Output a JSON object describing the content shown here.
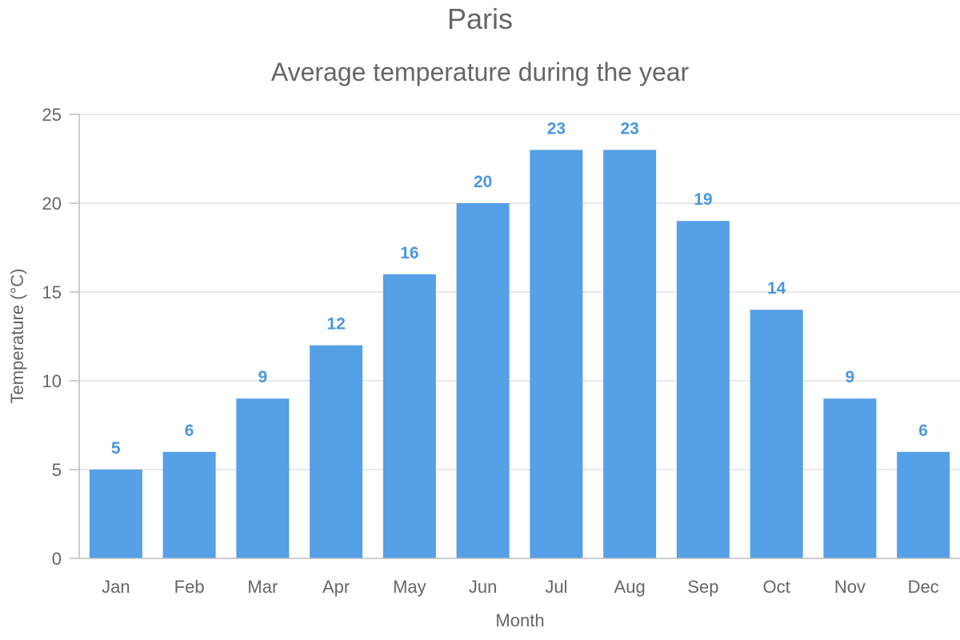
{
  "chart_data": {
    "type": "bar",
    "title": "Paris",
    "subtitle": "Average temperature during the year",
    "xlabel": "Month",
    "ylabel": "Temperature (°C)",
    "categories": [
      "Jan",
      "Feb",
      "Mar",
      "Apr",
      "May",
      "Jun",
      "Jul",
      "Aug",
      "Sep",
      "Oct",
      "Nov",
      "Dec"
    ],
    "values": [
      5,
      6,
      9,
      12,
      16,
      20,
      23,
      23,
      19,
      14,
      9,
      6
    ],
    "ylim": [
      0,
      25
    ],
    "yticks": [
      "0",
      "5",
      "10",
      "15",
      "20",
      "25"
    ],
    "grid": true,
    "data_labels": true,
    "legend": "none",
    "colors": {
      "bar": "#55a0e6",
      "label": "#4a97e0"
    }
  }
}
